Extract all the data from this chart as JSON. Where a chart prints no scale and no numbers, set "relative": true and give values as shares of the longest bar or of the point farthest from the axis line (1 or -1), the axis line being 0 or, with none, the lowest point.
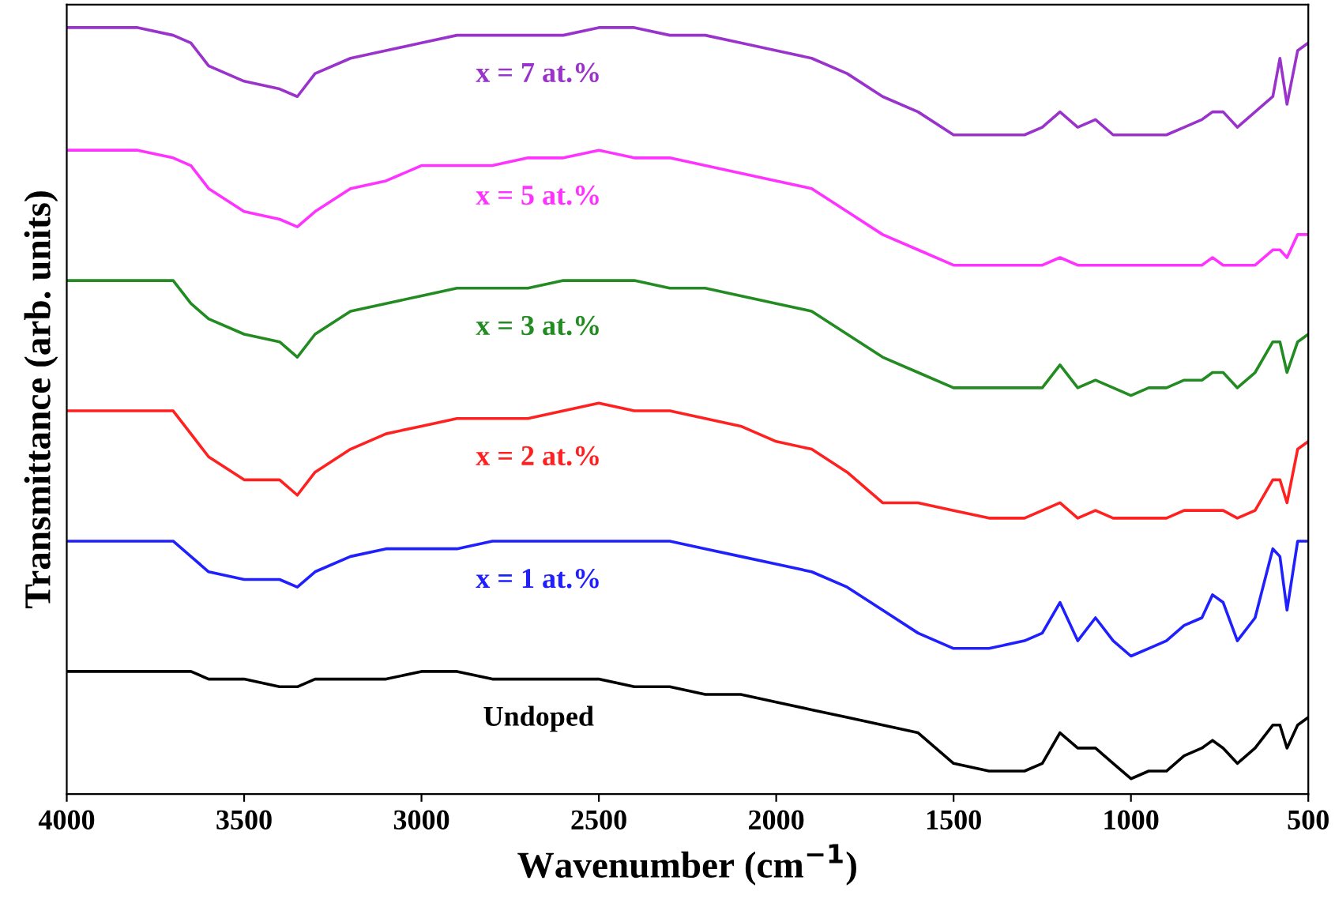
{
  "chart_data": {
    "type": "line",
    "relative": true,
    "xlabel": "Wavenumber (cm$^{−1}$)",
    "ylabel": "Transmittance (arb. units)",
    "xlim": [
      4000,
      500
    ],
    "xticks": [
      4000,
      3500,
      3000,
      2500,
      2000,
      1500,
      1000,
      500
    ],
    "x": [
      4000,
      3800,
      3700,
      3650,
      3600,
      3500,
      3400,
      3350,
      3300,
      3200,
      3100,
      3000,
      2900,
      2800,
      2700,
      2600,
      2500,
      2400,
      2300,
      2200,
      2100,
      2000,
      1900,
      1800,
      1700,
      1600,
      1500,
      1400,
      1300,
      1250,
      1200,
      1150,
      1100,
      1050,
      1000,
      950,
      900,
      850,
      800,
      770,
      740,
      700,
      650,
      600,
      580,
      560,
      530,
      500
    ],
    "series": [
      {
        "name": "x = 7 at.%",
        "color": "#9933cc",
        "values": [
          1.0,
          1.0,
          0.99,
          0.98,
          0.95,
          0.93,
          0.92,
          0.91,
          0.94,
          0.96,
          0.97,
          0.98,
          0.99,
          0.99,
          0.99,
          0.99,
          1.0,
          1.0,
          0.99,
          0.99,
          0.98,
          0.97,
          0.96,
          0.94,
          0.91,
          0.89,
          0.86,
          0.86,
          0.86,
          0.87,
          0.89,
          0.87,
          0.88,
          0.86,
          0.86,
          0.86,
          0.86,
          0.87,
          0.88,
          0.89,
          0.89,
          0.87,
          0.89,
          0.91,
          0.96,
          0.9,
          0.97,
          0.98
        ]
      },
      {
        "name": "x = 5 at.%",
        "color": "#ff33ff",
        "values": [
          0.84,
          0.84,
          0.83,
          0.82,
          0.79,
          0.76,
          0.75,
          0.74,
          0.76,
          0.79,
          0.8,
          0.82,
          0.82,
          0.82,
          0.83,
          0.83,
          0.84,
          0.83,
          0.83,
          0.82,
          0.81,
          0.8,
          0.79,
          0.76,
          0.73,
          0.71,
          0.69,
          0.69,
          0.69,
          0.69,
          0.7,
          0.69,
          0.69,
          0.69,
          0.69,
          0.69,
          0.69,
          0.69,
          0.69,
          0.7,
          0.69,
          0.69,
          0.69,
          0.71,
          0.71,
          0.7,
          0.73,
          0.73
        ]
      },
      {
        "name": "x = 3 at.%",
        "color": "#228b22",
        "values": [
          0.67,
          0.67,
          0.67,
          0.64,
          0.62,
          0.6,
          0.59,
          0.57,
          0.6,
          0.63,
          0.64,
          0.65,
          0.66,
          0.66,
          0.66,
          0.67,
          0.67,
          0.67,
          0.66,
          0.66,
          0.65,
          0.64,
          0.63,
          0.6,
          0.57,
          0.55,
          0.53,
          0.53,
          0.53,
          0.53,
          0.56,
          0.53,
          0.54,
          0.53,
          0.52,
          0.53,
          0.53,
          0.54,
          0.54,
          0.55,
          0.55,
          0.53,
          0.55,
          0.59,
          0.59,
          0.55,
          0.59,
          0.6
        ]
      },
      {
        "name": "x = 2 at.%",
        "color": "#ff2020",
        "values": [
          0.5,
          0.5,
          0.5,
          0.47,
          0.44,
          0.41,
          0.41,
          0.39,
          0.42,
          0.45,
          0.47,
          0.48,
          0.49,
          0.49,
          0.49,
          0.5,
          0.51,
          0.5,
          0.5,
          0.49,
          0.48,
          0.46,
          0.45,
          0.42,
          0.38,
          0.38,
          0.37,
          0.36,
          0.36,
          0.37,
          0.38,
          0.36,
          0.37,
          0.36,
          0.36,
          0.36,
          0.36,
          0.37,
          0.37,
          0.37,
          0.37,
          0.36,
          0.37,
          0.41,
          0.41,
          0.38,
          0.45,
          0.46
        ]
      },
      {
        "name": "x = 1 at.%",
        "color": "#2020ff",
        "values": [
          0.33,
          0.33,
          0.33,
          0.31,
          0.29,
          0.28,
          0.28,
          0.27,
          0.29,
          0.31,
          0.32,
          0.32,
          0.32,
          0.33,
          0.33,
          0.33,
          0.33,
          0.33,
          0.33,
          0.32,
          0.31,
          0.3,
          0.29,
          0.27,
          0.24,
          0.21,
          0.19,
          0.19,
          0.2,
          0.21,
          0.25,
          0.2,
          0.23,
          0.2,
          0.18,
          0.19,
          0.2,
          0.22,
          0.23,
          0.26,
          0.25,
          0.2,
          0.23,
          0.32,
          0.31,
          0.24,
          0.33,
          0.33
        ]
      },
      {
        "name": "Undoped",
        "color": "#000000",
        "values": [
          0.16,
          0.16,
          0.16,
          0.16,
          0.15,
          0.15,
          0.14,
          0.14,
          0.15,
          0.15,
          0.15,
          0.16,
          0.16,
          0.15,
          0.15,
          0.15,
          0.15,
          0.14,
          0.14,
          0.13,
          0.13,
          0.12,
          0.11,
          0.1,
          0.09,
          0.08,
          0.04,
          0.03,
          0.03,
          0.04,
          0.08,
          0.06,
          0.06,
          0.04,
          0.02,
          0.03,
          0.03,
          0.05,
          0.06,
          0.07,
          0.06,
          0.04,
          0.06,
          0.09,
          0.09,
          0.06,
          0.09,
          0.1
        ]
      }
    ]
  }
}
